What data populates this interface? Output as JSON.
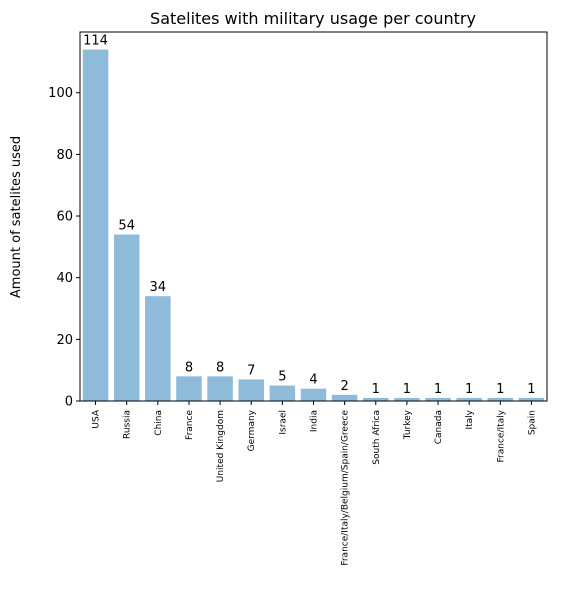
{
  "chart_data": {
    "type": "bar",
    "title": "Satelites with military usage per country",
    "xlabel": "",
    "ylabel": "Amount of satelites used",
    "categories": [
      "USA",
      "Russia",
      "China",
      "France",
      "United Kingdom",
      "Germany",
      "Israel",
      "India",
      "France/Italy/Belgium/Spain/Greece",
      "South Africa",
      "Turkey",
      "Canada",
      "Italy",
      "France/Italy",
      "Spain"
    ],
    "values": [
      114,
      54,
      34,
      8,
      8,
      7,
      5,
      4,
      2,
      1,
      1,
      1,
      1,
      1,
      1
    ],
    "ylim": [
      0,
      119.7
    ],
    "yticks": [
      0,
      20,
      40,
      60,
      80,
      100
    ],
    "bar_color": "#8fbbdb",
    "grid": false,
    "data_labels": true
  }
}
